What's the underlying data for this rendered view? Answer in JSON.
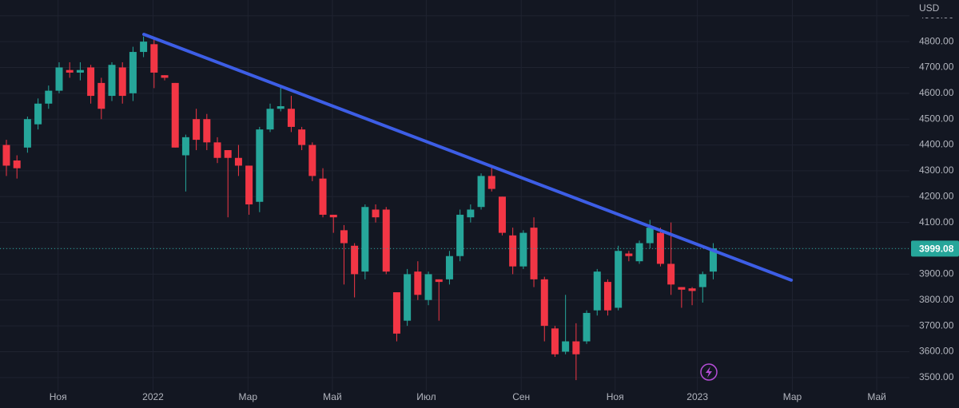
{
  "chart_data": {
    "type": "candlestick",
    "currency": "USD",
    "open": [
      4400,
      4340,
      4390,
      4480,
      4560,
      4610,
      4690,
      4680,
      4700,
      4640,
      4590,
      4700,
      4600,
      4760,
      4790,
      4670,
      4640,
      4360,
      4500,
      4500,
      4410,
      4380,
      4350,
      4320,
      4180,
      4460,
      4540,
      4540,
      4460,
      4400,
      4270,
      4130,
      4070,
      4010,
      3910,
      4150,
      4150,
      3830,
      3720,
      3910,
      3800,
      3880,
      3880,
      3970,
      4120,
      4160,
      4280,
      4200,
      4050,
      3930,
      4080,
      3880,
      3690,
      3600,
      3640,
      3640,
      3760,
      3870,
      3770,
      3980,
      3950,
      4020,
      4060,
      3940,
      3850,
      3845,
      3850,
      3910
    ],
    "high": [
      4420,
      4360,
      4510,
      4580,
      4630,
      4720,
      4720,
      4720,
      4710,
      4660,
      4720,
      4720,
      4780,
      4820,
      4810,
      4670,
      4640,
      4440,
      4540,
      4520,
      4430,
      4380,
      4400,
      4320,
      4470,
      4560,
      4630,
      4590,
      4470,
      4410,
      4310,
      4130,
      4090,
      4020,
      4170,
      4170,
      4160,
      3830,
      3920,
      3950,
      3910,
      3880,
      3990,
      4150,
      4170,
      4290,
      4320,
      4200,
      4080,
      4070,
      4120,
      3890,
      3700,
      3820,
      3710,
      3760,
      3920,
      3880,
      4010,
      3990,
      4030,
      4110,
      4080,
      4100,
      3850,
      3850,
      3910,
      4020
    ],
    "low": [
      4280,
      4270,
      4370,
      4460,
      4540,
      4600,
      4660,
      4650,
      4560,
      4500,
      4570,
      4560,
      4570,
      4740,
      4620,
      4650,
      4390,
      4220,
      4380,
      4380,
      4330,
      4120,
      4280,
      4130,
      4140,
      4450,
      4530,
      4450,
      4380,
      4260,
      4120,
      4060,
      3860,
      3810,
      3880,
      4100,
      3900,
      3640,
      3700,
      3800,
      3780,
      3720,
      3860,
      3950,
      4100,
      4150,
      4220,
      4050,
      3900,
      3920,
      3850,
      3640,
      3580,
      3590,
      3490,
      3630,
      3740,
      3740,
      3760,
      3950,
      3940,
      4000,
      3930,
      3820,
      3770,
      3780,
      3790,
      3880
    ],
    "close": [
      4320,
      4310,
      4500,
      4560,
      4610,
      4700,
      4680,
      4690,
      4590,
      4540,
      4710,
      4590,
      4760,
      4800,
      4680,
      4660,
      4390,
      4430,
      4420,
      4410,
      4350,
      4350,
      4320,
      4170,
      4460,
      4540,
      4550,
      4470,
      4400,
      4280,
      4130,
      4120,
      4020,
      3900,
      4160,
      4120,
      3910,
      3670,
      3900,
      3820,
      3900,
      3870,
      3970,
      4130,
      4150,
      4280,
      4230,
      4060,
      3930,
      4060,
      3880,
      3700,
      3590,
      3640,
      3590,
      3750,
      3910,
      3760,
      3990,
      3970,
      4020,
      4080,
      3940,
      3860,
      3840,
      3835,
      3900,
      4000
    ],
    "up_color": "#26a69a",
    "down_color": "#f23645",
    "xlim": [
      -0.606,
      85.6
    ],
    "ylim": [
      3447,
      4961
    ],
    "xticks": [
      {
        "value": 4.9,
        "label": "Ноя"
      },
      {
        "value": 13.9,
        "label": "2022"
      },
      {
        "value": 22.9,
        "label": "Мар"
      },
      {
        "value": 30.9,
        "label": "Май"
      },
      {
        "value": 39.8,
        "label": "Июл"
      },
      {
        "value": 48.8,
        "label": "Сен"
      },
      {
        "value": 57.7,
        "label": "Ноя"
      },
      {
        "value": 65.5,
        "label": "2023"
      },
      {
        "value": 74.5,
        "label": "Мар"
      },
      {
        "value": 82.5,
        "label": "Май"
      }
    ],
    "yticks": [
      {
        "value": 3500,
        "label": "3500.00"
      },
      {
        "value": 3600,
        "label": "3600.00"
      },
      {
        "value": 3700,
        "label": "3700.00"
      },
      {
        "value": 3800,
        "label": "3800.00"
      },
      {
        "value": 3900,
        "label": "3900.00"
      },
      {
        "value": 4000,
        "label": "4000.00"
      },
      {
        "value": 4100,
        "label": "4100.00"
      },
      {
        "value": 4200,
        "label": "4200.00"
      },
      {
        "value": 4300,
        "label": "4300.00"
      },
      {
        "value": 4400,
        "label": "4400.00"
      },
      {
        "value": 4500,
        "label": "4500.00"
      },
      {
        "value": 4600,
        "label": "4600.00"
      },
      {
        "value": 4700,
        "label": "4700.00"
      },
      {
        "value": 4800,
        "label": "4800.00"
      },
      {
        "value": 4900,
        "label": "4900.00"
      }
    ],
    "grid": true,
    "last_price": 3999.08,
    "last_price_color": "#26a69a",
    "trend_line": {
      "x": [
        13.03,
        74.4
      ],
      "y": [
        4828,
        3877
      ],
      "color": "#3d5ee6"
    }
  }
}
